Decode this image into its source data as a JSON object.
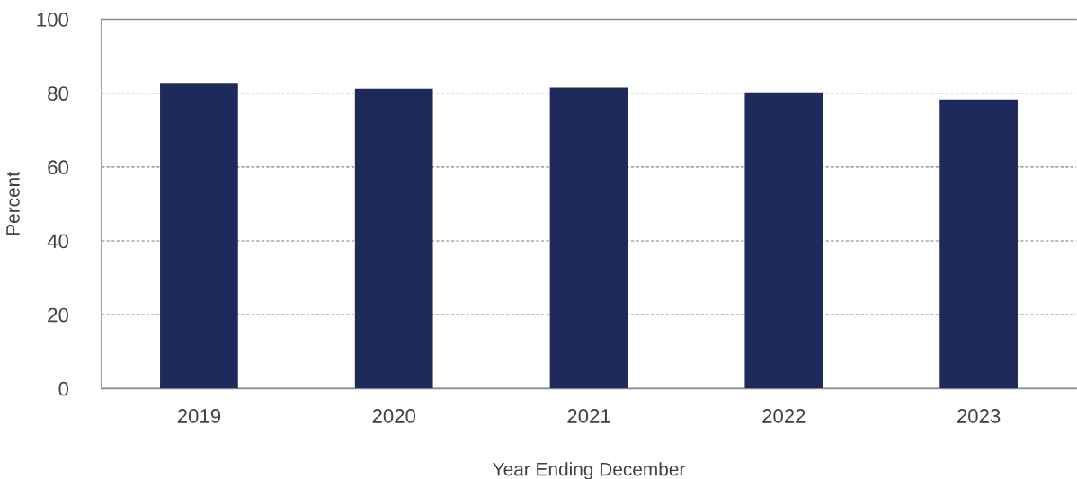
{
  "chart_data": {
    "type": "bar",
    "xlabel": "Year Ending December",
    "ylabel": "Percent",
    "categories": [
      "2019",
      "2020",
      "2021",
      "2022",
      "2023"
    ],
    "values": [
      82.8,
      81.2,
      81.5,
      80.2,
      78.3
    ],
    "color": "#1f2a5c",
    "ylim": [
      0,
      100
    ],
    "yticks": [
      0,
      20,
      40,
      60,
      80,
      100
    ],
    "grid": "y",
    "legend": false
  }
}
